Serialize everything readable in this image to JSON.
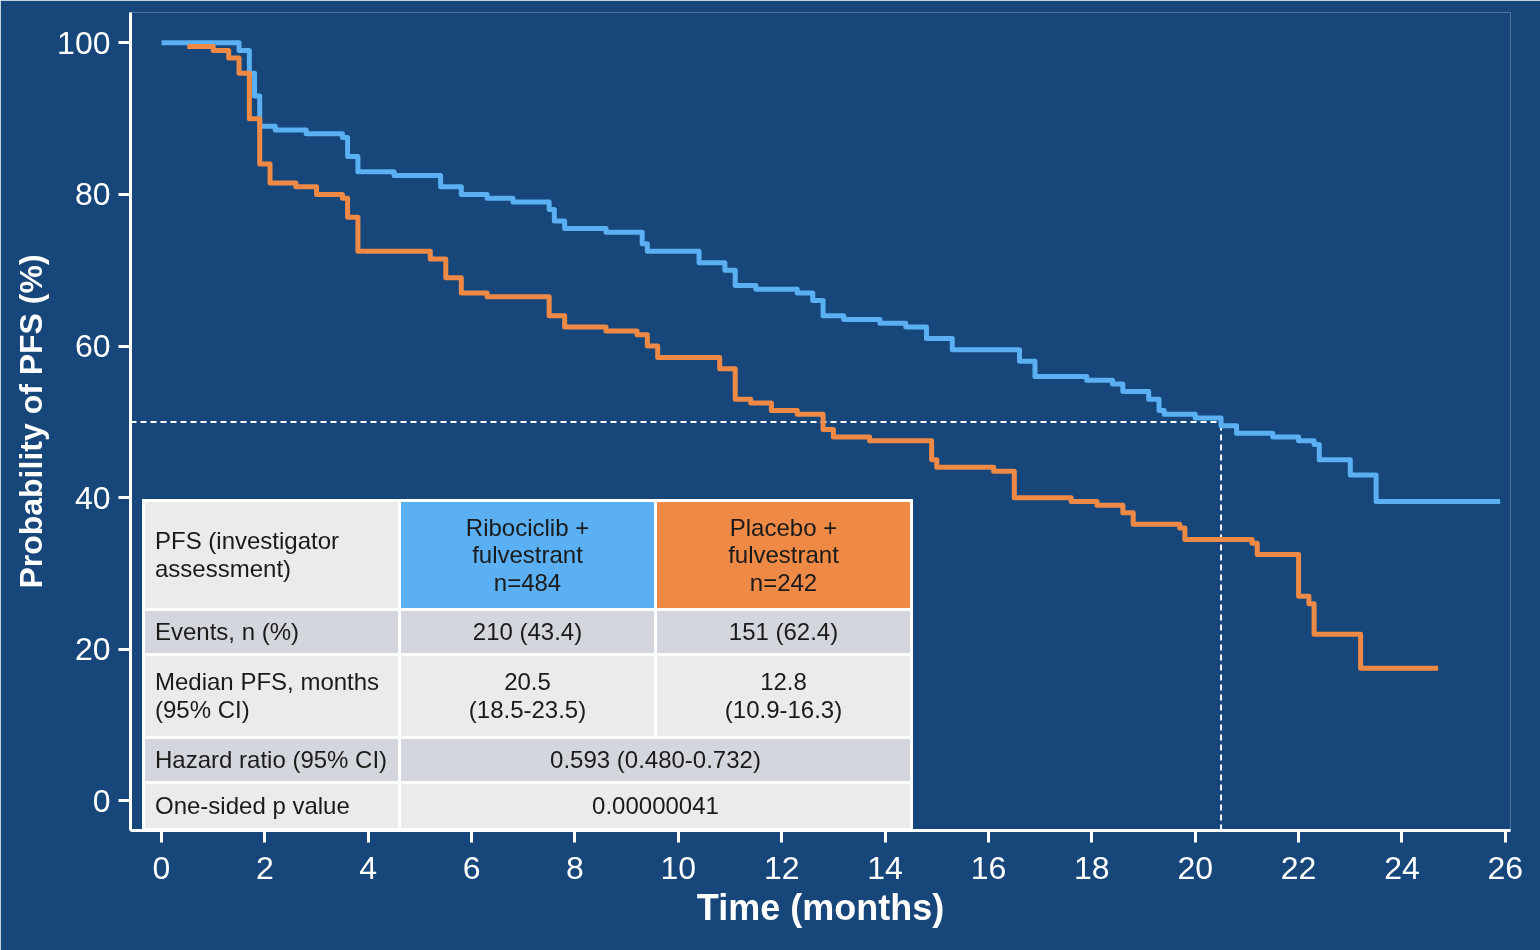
{
  "chart_data": {
    "type": "step",
    "xlabel": "Time (months)",
    "ylabel": "Probability of PFS (%)",
    "xlim": [
      -0.6,
      26.1
    ],
    "ylim": [
      -3.9,
      104
    ],
    "xticks": [
      0,
      2,
      4,
      6,
      8,
      10,
      12,
      14,
      16,
      18,
      20,
      22,
      24,
      26
    ],
    "yticks": [
      0,
      20,
      40,
      60,
      80,
      100
    ],
    "grid": false,
    "line_style": "solid",
    "marker": "none",
    "series": [
      {
        "color": "#5ab0f2",
        "x": [
          0,
          1.2,
          1.5,
          1.7,
          1.8,
          1.9,
          2.2,
          2.8,
          3.5,
          3.6,
          3.8,
          4.5,
          5.0,
          5.4,
          5.8,
          6.3,
          6.8,
          7.5,
          7.6,
          7.8,
          8.6,
          9.3,
          9.4,
          10.1,
          10.4,
          10.9,
          11.1,
          11.5,
          12.3,
          12.6,
          12.8,
          13.2,
          13.9,
          14.4,
          14.8,
          15.3,
          16.4,
          16.6,
          16.9,
          17.9,
          18.4,
          18.6,
          19.1,
          19.3,
          19.4,
          20.0,
          20.5,
          20.8,
          21.5,
          22.0,
          22.3,
          22.4,
          22.9,
          23.0,
          23.4,
          23.5,
          25.9
        ],
        "values": [
          100,
          100,
          99,
          96,
          93,
          89,
          88.5,
          88,
          87.5,
          85,
          83,
          82.5,
          82.5,
          81,
          80,
          79.5,
          79,
          78,
          76.5,
          75.5,
          75,
          73.5,
          72.5,
          72.5,
          71,
          70,
          68,
          67.5,
          67,
          66,
          64,
          63.5,
          63,
          62.5,
          61,
          59.5,
          59.5,
          58,
          56,
          55.5,
          55,
          54,
          53,
          51.5,
          51,
          50.5,
          49.5,
          48.5,
          48,
          47.5,
          47,
          45,
          45,
          43,
          43,
          39.5,
          39.5
        ]
      },
      {
        "color": "#ee8a45",
        "x": [
          0.5,
          1.0,
          1.3,
          1.5,
          1.7,
          1.9,
          2.1,
          2.6,
          3.0,
          3.5,
          3.6,
          3.8,
          4.5,
          5.2,
          5.5,
          5.8,
          6.3,
          7.3,
          7.5,
          7.8,
          8.6,
          9.2,
          9.4,
          9.6,
          10.5,
          10.8,
          11.1,
          11.4,
          11.8,
          12.3,
          12.8,
          13.0,
          13.7,
          14.6,
          14.9,
          15.0,
          16.1,
          16.5,
          17.6,
          18.1,
          18.6,
          18.8,
          19.7,
          19.8,
          20.5,
          21.1,
          21.2,
          21.9,
          22.0,
          22.2,
          22.3,
          23.1,
          23.2,
          24.7
        ],
        "values": [
          99.5,
          99,
          98,
          96,
          90,
          84,
          81.5,
          81,
          80,
          79.5,
          77,
          72.5,
          72.5,
          71.5,
          69,
          67,
          66.5,
          66.5,
          64,
          62.5,
          62,
          61.5,
          60,
          58.5,
          58.5,
          57,
          53,
          52.5,
          51.5,
          51,
          49,
          48,
          47.5,
          47.5,
          45,
          44,
          43.5,
          40,
          39.5,
          39,
          38,
          36.5,
          36,
          34.5,
          34.5,
          34,
          32.5,
          32.5,
          27,
          26,
          22,
          22,
          17.5,
          17.5
        ]
      }
    ],
    "ref_lines": [
      {
        "axis": "y",
        "value": 50,
        "label": null,
        "color": "#ffffff",
        "line_style": "dashed"
      },
      {
        "axis": "x",
        "value": 20.5,
        "label": null,
        "color": "#ffffff",
        "line_style": "dashed"
      }
    ],
    "annotations": [
      "PFS (investigator\nassessment)",
      "Ribociclib +\nfulvestrant\nn=484",
      "Placebo +\nfulvestrant\nn=242",
      "Events, n (%)",
      "210 (43.4)",
      "151 (62.4)",
      "Median PFS, months\n(95% CI)",
      "20.5\n(18.5-23.5)",
      "12.8\n(10.9-16.3)",
      "Hazard ratio (95% CI)",
      "0.593 (0.480-0.732)",
      "One-sided p value",
      "0.00000041"
    ]
  }
}
